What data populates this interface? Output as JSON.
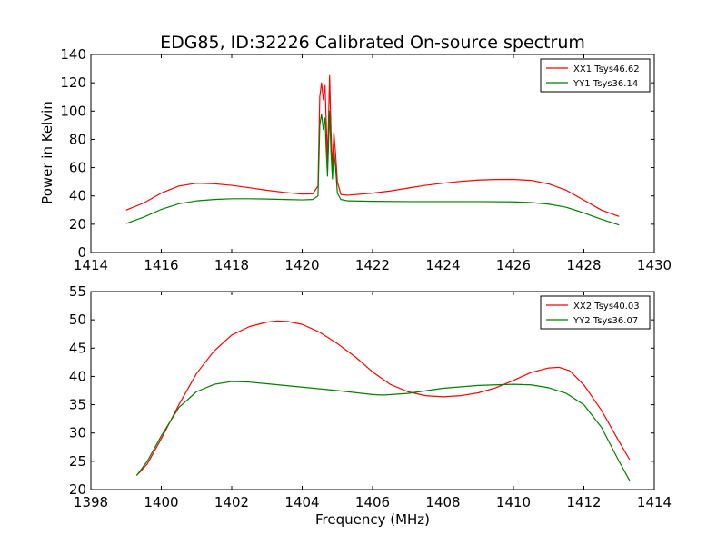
{
  "title": "EDG85, ID:32226 Calibrated On-source spectrum",
  "ylabel_top": "Power in Kelvin",
  "xlabel": "Frequency (MHz)",
  "chart_data": [
    {
      "type": "line",
      "xlim": [
        1414,
        1430
      ],
      "ylim": [
        0,
        140
      ],
      "xticks": [
        1414,
        1416,
        1418,
        1420,
        1422,
        1424,
        1426,
        1428,
        1430
      ],
      "yticks": [
        0,
        20,
        40,
        60,
        80,
        100,
        120,
        140
      ],
      "xlabel": "",
      "ylabel": "Power in Kelvin",
      "legend_position": "top-right",
      "series": [
        {
          "name": "XX1 Tsys46.62",
          "color": "#ff0000",
          "points": [
            [
              1415,
              30
            ],
            [
              1415.5,
              35
            ],
            [
              1416,
              42
            ],
            [
              1416.5,
              47
            ],
            [
              1417,
              49
            ],
            [
              1417.5,
              48.6
            ],
            [
              1418,
              47.5
            ],
            [
              1418.5,
              45.8
            ],
            [
              1419,
              44
            ],
            [
              1419.5,
              42.5
            ],
            [
              1420,
              41.3
            ],
            [
              1420.3,
              41.5
            ],
            [
              1420.45,
              47
            ],
            [
              1420.5,
              110
            ],
            [
              1420.55,
              120
            ],
            [
              1420.6,
              108
            ],
            [
              1420.65,
              118
            ],
            [
              1420.68,
              95
            ],
            [
              1420.72,
              65
            ],
            [
              1420.78,
              125
            ],
            [
              1420.82,
              85
            ],
            [
              1420.86,
              60
            ],
            [
              1420.9,
              85
            ],
            [
              1420.95,
              70
            ],
            [
              1421,
              50
            ],
            [
              1421.1,
              41
            ],
            [
              1421.3,
              40.5
            ],
            [
              1422,
              42
            ],
            [
              1422.5,
              43.5
            ],
            [
              1423,
              45.5
            ],
            [
              1423.5,
              47.5
            ],
            [
              1424,
              49
            ],
            [
              1424.5,
              50.3
            ],
            [
              1425,
              51.2
            ],
            [
              1425.5,
              51.6
            ],
            [
              1426,
              51.7
            ],
            [
              1426.5,
              51
            ],
            [
              1427,
              48.5
            ],
            [
              1427.5,
              44
            ],
            [
              1428,
              37
            ],
            [
              1428.5,
              30
            ],
            [
              1429,
              25.5
            ]
          ]
        },
        {
          "name": "YY1 Tsys36.14",
          "color": "#008000",
          "points": [
            [
              1415,
              20.5
            ],
            [
              1415.5,
              25
            ],
            [
              1416,
              30.5
            ],
            [
              1416.5,
              34.5
            ],
            [
              1417,
              36.5
            ],
            [
              1417.5,
              37.5
            ],
            [
              1418,
              38
            ],
            [
              1418.5,
              38
            ],
            [
              1419,
              37.8
            ],
            [
              1419.5,
              37.5
            ],
            [
              1420,
              37.2
            ],
            [
              1420.3,
              37.5
            ],
            [
              1420.45,
              40
            ],
            [
              1420.5,
              90
            ],
            [
              1420.55,
              98
            ],
            [
              1420.6,
              87
            ],
            [
              1420.65,
              95
            ],
            [
              1420.68,
              75
            ],
            [
              1420.72,
              54
            ],
            [
              1420.78,
              100
            ],
            [
              1420.82,
              70
            ],
            [
              1420.86,
              52
            ],
            [
              1420.9,
              72
            ],
            [
              1420.95,
              60
            ],
            [
              1421,
              42
            ],
            [
              1421.1,
              37.5
            ],
            [
              1421.3,
              36.5
            ],
            [
              1422,
              36.2
            ],
            [
              1423,
              36
            ],
            [
              1424,
              36
            ],
            [
              1425,
              36
            ],
            [
              1426,
              35.8
            ],
            [
              1426.5,
              35.3
            ],
            [
              1427,
              34.2
            ],
            [
              1427.5,
              32
            ],
            [
              1428,
              28
            ],
            [
              1428.5,
              23.5
            ],
            [
              1429,
              19.5
            ]
          ]
        }
      ]
    },
    {
      "type": "line",
      "xlim": [
        1398,
        1414
      ],
      "ylim": [
        20,
        55
      ],
      "xticks": [
        1398,
        1400,
        1402,
        1404,
        1406,
        1408,
        1410,
        1412,
        1414
      ],
      "yticks": [
        20,
        25,
        30,
        35,
        40,
        45,
        50,
        55
      ],
      "xlabel": "Frequency (MHz)",
      "ylabel": "",
      "legend_position": "top-right",
      "series": [
        {
          "name": "XX2 Tsys40.03",
          "color": "#ff0000",
          "points": [
            [
              1399.3,
              22.5
            ],
            [
              1399.6,
              24.5
            ],
            [
              1400,
              29
            ],
            [
              1400.5,
              35
            ],
            [
              1401,
              40.5
            ],
            [
              1401.5,
              44.5
            ],
            [
              1402,
              47.3
            ],
            [
              1402.5,
              48.8
            ],
            [
              1403,
              49.6
            ],
            [
              1403.3,
              49.8
            ],
            [
              1403.6,
              49.7
            ],
            [
              1404,
              49.2
            ],
            [
              1404.5,
              47.8
            ],
            [
              1405,
              45.8
            ],
            [
              1405.5,
              43.5
            ],
            [
              1406,
              40.8
            ],
            [
              1406.5,
              38.6
            ],
            [
              1407,
              37.3
            ],
            [
              1407.5,
              36.6
            ],
            [
              1408,
              36.4
            ],
            [
              1408.5,
              36.6
            ],
            [
              1409,
              37.1
            ],
            [
              1409.5,
              38
            ],
            [
              1410,
              39.3
            ],
            [
              1410.5,
              40.7
            ],
            [
              1411,
              41.5
            ],
            [
              1411.3,
              41.6
            ],
            [
              1411.6,
              41
            ],
            [
              1412,
              38.5
            ],
            [
              1412.5,
              34
            ],
            [
              1413,
              28.5
            ],
            [
              1413.3,
              25.3
            ]
          ]
        },
        {
          "name": "YY2 Tsys36.07",
          "color": "#008000",
          "points": [
            [
              1399.3,
              22.5
            ],
            [
              1399.6,
              25
            ],
            [
              1400,
              29.5
            ],
            [
              1400.5,
              34.5
            ],
            [
              1401,
              37.3
            ],
            [
              1401.5,
              38.6
            ],
            [
              1402,
              39.1
            ],
            [
              1402.5,
              39
            ],
            [
              1403,
              38.7
            ],
            [
              1403.5,
              38.4
            ],
            [
              1404,
              38.1
            ],
            [
              1405,
              37.5
            ],
            [
              1406,
              36.8
            ],
            [
              1406.3,
              36.7
            ],
            [
              1407,
              37
            ],
            [
              1408,
              37.9
            ],
            [
              1409,
              38.4
            ],
            [
              1410,
              38.6
            ],
            [
              1410.5,
              38.5
            ],
            [
              1411,
              38
            ],
            [
              1411.5,
              37
            ],
            [
              1412,
              35
            ],
            [
              1412.5,
              31
            ],
            [
              1413,
              25
            ],
            [
              1413.3,
              21.6
            ]
          ]
        }
      ]
    }
  ]
}
